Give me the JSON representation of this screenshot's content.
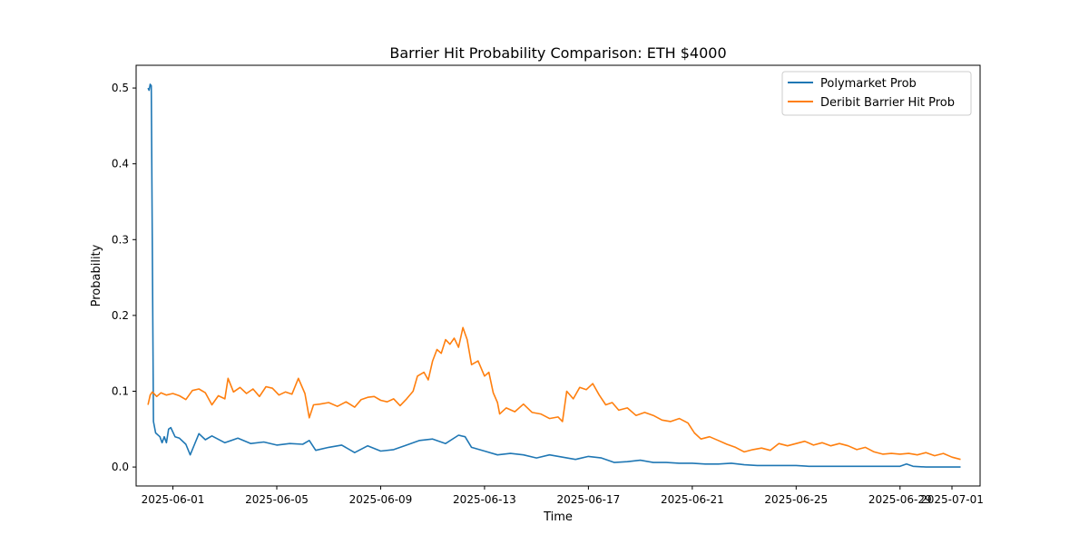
{
  "chart_data": {
    "type": "line",
    "title": "Barrier Hit Probability Comparison: ETH $4000",
    "xlabel": "Time",
    "ylabel": "Probability",
    "xlim": [
      "2025-05-30T14:00",
      "2025-07-02T02:00"
    ],
    "ylim": [
      -0.025,
      0.53
    ],
    "x_ticks": [
      "2025-06-01",
      "2025-06-05",
      "2025-06-09",
      "2025-06-13",
      "2025-06-17",
      "2025-06-21",
      "2025-06-25",
      "2025-06-29",
      "2025-07-01"
    ],
    "x_tick_labels": [
      "2025-06-01",
      "2025-06-05",
      "2025-06-09",
      "2025-06-13",
      "2025-06-17",
      "2025-06-21",
      "2025-06-25",
      "2025-06-29",
      "2025-07-01"
    ],
    "y_ticks": [
      0.0,
      0.1,
      0.2,
      0.3,
      0.4,
      0.5
    ],
    "y_tick_labels": [
      "0.0",
      "0.1",
      "0.2",
      "0.3",
      "0.4",
      "0.5"
    ],
    "legend_position": "top-right",
    "grid": false,
    "series": [
      {
        "name": "Polymarket Prob",
        "color": "#1f77b4",
        "points": [
          [
            "2025-05-31T01:00",
            0.5
          ],
          [
            "2025-05-31T02:00",
            0.497
          ],
          [
            "2025-05-31T03:00",
            0.505
          ],
          [
            "2025-05-31T04:00",
            0.503
          ],
          [
            "2025-05-31T06:00",
            0.06
          ],
          [
            "2025-05-31T08:00",
            0.045
          ],
          [
            "2025-05-31T12:00",
            0.04
          ],
          [
            "2025-05-31T14:00",
            0.032
          ],
          [
            "2025-05-31T16:00",
            0.04
          ],
          [
            "2025-05-31T18:00",
            0.032
          ],
          [
            "2025-05-31T20:00",
            0.05
          ],
          [
            "2025-05-31T22:00",
            0.052
          ],
          [
            "2025-06-01T02:00",
            0.04
          ],
          [
            "2025-06-01T06:00",
            0.038
          ],
          [
            "2025-06-01T12:00",
            0.03
          ],
          [
            "2025-06-01T16:00",
            0.016
          ],
          [
            "2025-06-01T20:00",
            0.03
          ],
          [
            "2025-06-02T00:00",
            0.044
          ],
          [
            "2025-06-02T06:00",
            0.036
          ],
          [
            "2025-06-02T12:00",
            0.041
          ],
          [
            "2025-06-03T00:00",
            0.032
          ],
          [
            "2025-06-03T12:00",
            0.038
          ],
          [
            "2025-06-04T00:00",
            0.031
          ],
          [
            "2025-06-04T12:00",
            0.033
          ],
          [
            "2025-06-05T00:00",
            0.029
          ],
          [
            "2025-06-05T12:00",
            0.031
          ],
          [
            "2025-06-06T00:00",
            0.03
          ],
          [
            "2025-06-06T06:00",
            0.035
          ],
          [
            "2025-06-06T12:00",
            0.022
          ],
          [
            "2025-06-07T00:00",
            0.026
          ],
          [
            "2025-06-07T12:00",
            0.029
          ],
          [
            "2025-06-08T00:00",
            0.019
          ],
          [
            "2025-06-08T12:00",
            0.028
          ],
          [
            "2025-06-09T00:00",
            0.021
          ],
          [
            "2025-06-09T12:00",
            0.023
          ],
          [
            "2025-06-10T00:00",
            0.029
          ],
          [
            "2025-06-10T12:00",
            0.035
          ],
          [
            "2025-06-11T00:00",
            0.037
          ],
          [
            "2025-06-11T12:00",
            0.031
          ],
          [
            "2025-06-12T00:00",
            0.042
          ],
          [
            "2025-06-12T06:00",
            0.04
          ],
          [
            "2025-06-12T12:00",
            0.026
          ],
          [
            "2025-06-13T00:00",
            0.021
          ],
          [
            "2025-06-13T12:00",
            0.016
          ],
          [
            "2025-06-14T00:00",
            0.018
          ],
          [
            "2025-06-14T12:00",
            0.016
          ],
          [
            "2025-06-15T00:00",
            0.012
          ],
          [
            "2025-06-15T12:00",
            0.016
          ],
          [
            "2025-06-16T00:00",
            0.013
          ],
          [
            "2025-06-16T12:00",
            0.01
          ],
          [
            "2025-06-17T00:00",
            0.014
          ],
          [
            "2025-06-17T12:00",
            0.012
          ],
          [
            "2025-06-18T00:00",
            0.006
          ],
          [
            "2025-06-18T12:00",
            0.007
          ],
          [
            "2025-06-19T00:00",
            0.009
          ],
          [
            "2025-06-19T12:00",
            0.006
          ],
          [
            "2025-06-20T00:00",
            0.006
          ],
          [
            "2025-06-20T12:00",
            0.005
          ],
          [
            "2025-06-21T00:00",
            0.005
          ],
          [
            "2025-06-21T12:00",
            0.004
          ],
          [
            "2025-06-22T00:00",
            0.004
          ],
          [
            "2025-06-22T12:00",
            0.005
          ],
          [
            "2025-06-23T00:00",
            0.003
          ],
          [
            "2025-06-23T12:00",
            0.002
          ],
          [
            "2025-06-24T00:00",
            0.002
          ],
          [
            "2025-06-24T12:00",
            0.002
          ],
          [
            "2025-06-25T00:00",
            0.002
          ],
          [
            "2025-06-25T12:00",
            0.001
          ],
          [
            "2025-06-26T00:00",
            0.001
          ],
          [
            "2025-06-26T12:00",
            0.001
          ],
          [
            "2025-06-27T00:00",
            0.001
          ],
          [
            "2025-06-27T12:00",
            0.001
          ],
          [
            "2025-06-28T00:00",
            0.001
          ],
          [
            "2025-06-28T12:00",
            0.001
          ],
          [
            "2025-06-29T00:00",
            0.001
          ],
          [
            "2025-06-29T06:00",
            0.004
          ],
          [
            "2025-06-29T12:00",
            0.001
          ],
          [
            "2025-06-30T00:00",
            0.0
          ],
          [
            "2025-06-30T12:00",
            0.0
          ],
          [
            "2025-07-01T00:00",
            0.0
          ],
          [
            "2025-07-01T08:00",
            0.0
          ]
        ]
      },
      {
        "name": "Deribit Barrier Hit Prob",
        "color": "#ff7f0e",
        "points": [
          [
            "2025-05-31T01:00",
            0.082
          ],
          [
            "2025-05-31T03:00",
            0.095
          ],
          [
            "2025-05-31T05:00",
            0.099
          ],
          [
            "2025-05-31T09:00",
            0.093
          ],
          [
            "2025-05-31T13:00",
            0.098
          ],
          [
            "2025-05-31T18:00",
            0.095
          ],
          [
            "2025-06-01T00:00",
            0.097
          ],
          [
            "2025-06-01T06:00",
            0.094
          ],
          [
            "2025-06-01T12:00",
            0.089
          ],
          [
            "2025-06-01T18:00",
            0.101
          ],
          [
            "2025-06-02T00:00",
            0.103
          ],
          [
            "2025-06-02T06:00",
            0.098
          ],
          [
            "2025-06-02T12:00",
            0.082
          ],
          [
            "2025-06-02T18:00",
            0.094
          ],
          [
            "2025-06-03T00:00",
            0.09
          ],
          [
            "2025-06-03T03:00",
            0.117
          ],
          [
            "2025-06-03T08:00",
            0.099
          ],
          [
            "2025-06-03T14:00",
            0.105
          ],
          [
            "2025-06-03T20:00",
            0.097
          ],
          [
            "2025-06-04T02:00",
            0.103
          ],
          [
            "2025-06-04T08:00",
            0.093
          ],
          [
            "2025-06-04T14:00",
            0.106
          ],
          [
            "2025-06-04T20:00",
            0.104
          ],
          [
            "2025-06-05T02:00",
            0.095
          ],
          [
            "2025-06-05T08:00",
            0.099
          ],
          [
            "2025-06-05T14:00",
            0.096
          ],
          [
            "2025-06-05T20:00",
            0.117
          ],
          [
            "2025-06-06T02:00",
            0.097
          ],
          [
            "2025-06-06T06:00",
            0.065
          ],
          [
            "2025-06-06T10:00",
            0.082
          ],
          [
            "2025-06-06T16:00",
            0.083
          ],
          [
            "2025-06-07T00:00",
            0.085
          ],
          [
            "2025-06-07T08:00",
            0.08
          ],
          [
            "2025-06-07T16:00",
            0.086
          ],
          [
            "2025-06-08T00:00",
            0.079
          ],
          [
            "2025-06-08T06:00",
            0.089
          ],
          [
            "2025-06-08T12:00",
            0.092
          ],
          [
            "2025-06-08T18:00",
            0.093
          ],
          [
            "2025-06-09T00:00",
            0.088
          ],
          [
            "2025-06-09T06:00",
            0.086
          ],
          [
            "2025-06-09T12:00",
            0.09
          ],
          [
            "2025-06-09T18:00",
            0.081
          ],
          [
            "2025-06-10T00:00",
            0.09
          ],
          [
            "2025-06-10T06:00",
            0.1
          ],
          [
            "2025-06-10T10:00",
            0.12
          ],
          [
            "2025-06-10T16:00",
            0.125
          ],
          [
            "2025-06-10T20:00",
            0.115
          ],
          [
            "2025-06-11T00:00",
            0.14
          ],
          [
            "2025-06-11T04:00",
            0.155
          ],
          [
            "2025-06-11T08:00",
            0.15
          ],
          [
            "2025-06-11T12:00",
            0.168
          ],
          [
            "2025-06-11T16:00",
            0.162
          ],
          [
            "2025-06-11T20:00",
            0.17
          ],
          [
            "2025-06-12T00:00",
            0.158
          ],
          [
            "2025-06-12T04:00",
            0.184
          ],
          [
            "2025-06-12T08:00",
            0.168
          ],
          [
            "2025-06-12T12:00",
            0.135
          ],
          [
            "2025-06-12T18:00",
            0.14
          ],
          [
            "2025-06-13T00:00",
            0.12
          ],
          [
            "2025-06-13T04:00",
            0.125
          ],
          [
            "2025-06-13T08:00",
            0.098
          ],
          [
            "2025-06-13T12:00",
            0.085
          ],
          [
            "2025-06-13T14:00",
            0.07
          ],
          [
            "2025-06-13T20:00",
            0.078
          ],
          [
            "2025-06-14T04:00",
            0.073
          ],
          [
            "2025-06-14T12:00",
            0.083
          ],
          [
            "2025-06-14T20:00",
            0.072
          ],
          [
            "2025-06-15T04:00",
            0.07
          ],
          [
            "2025-06-15T12:00",
            0.064
          ],
          [
            "2025-06-15T20:00",
            0.066
          ],
          [
            "2025-06-16T00:00",
            0.06
          ],
          [
            "2025-06-16T04:00",
            0.1
          ],
          [
            "2025-06-16T10:00",
            0.09
          ],
          [
            "2025-06-16T16:00",
            0.105
          ],
          [
            "2025-06-16T22:00",
            0.102
          ],
          [
            "2025-06-17T04:00",
            0.11
          ],
          [
            "2025-06-17T10:00",
            0.095
          ],
          [
            "2025-06-17T16:00",
            0.082
          ],
          [
            "2025-06-17T22:00",
            0.085
          ],
          [
            "2025-06-18T04:00",
            0.075
          ],
          [
            "2025-06-18T12:00",
            0.078
          ],
          [
            "2025-06-18T20:00",
            0.068
          ],
          [
            "2025-06-19T04:00",
            0.072
          ],
          [
            "2025-06-19T12:00",
            0.068
          ],
          [
            "2025-06-19T20:00",
            0.062
          ],
          [
            "2025-06-20T04:00",
            0.06
          ],
          [
            "2025-06-20T12:00",
            0.064
          ],
          [
            "2025-06-20T20:00",
            0.058
          ],
          [
            "2025-06-21T02:00",
            0.045
          ],
          [
            "2025-06-21T08:00",
            0.037
          ],
          [
            "2025-06-21T16:00",
            0.04
          ],
          [
            "2025-06-22T00:00",
            0.035
          ],
          [
            "2025-06-22T08:00",
            0.03
          ],
          [
            "2025-06-22T16:00",
            0.026
          ],
          [
            "2025-06-23T00:00",
            0.02
          ],
          [
            "2025-06-23T08:00",
            0.023
          ],
          [
            "2025-06-23T16:00",
            0.025
          ],
          [
            "2025-06-24T00:00",
            0.022
          ],
          [
            "2025-06-24T08:00",
            0.031
          ],
          [
            "2025-06-24T16:00",
            0.028
          ],
          [
            "2025-06-25T00:00",
            0.031
          ],
          [
            "2025-06-25T08:00",
            0.034
          ],
          [
            "2025-06-25T16:00",
            0.029
          ],
          [
            "2025-06-26T00:00",
            0.032
          ],
          [
            "2025-06-26T08:00",
            0.028
          ],
          [
            "2025-06-26T16:00",
            0.031
          ],
          [
            "2025-06-27T00:00",
            0.028
          ],
          [
            "2025-06-27T08:00",
            0.023
          ],
          [
            "2025-06-27T16:00",
            0.026
          ],
          [
            "2025-06-28T00:00",
            0.02
          ],
          [
            "2025-06-28T08:00",
            0.017
          ],
          [
            "2025-06-28T16:00",
            0.018
          ],
          [
            "2025-06-29T00:00",
            0.017
          ],
          [
            "2025-06-29T08:00",
            0.018
          ],
          [
            "2025-06-29T16:00",
            0.016
          ],
          [
            "2025-06-30T00:00",
            0.019
          ],
          [
            "2025-06-30T08:00",
            0.015
          ],
          [
            "2025-06-30T16:00",
            0.018
          ],
          [
            "2025-07-01T00:00",
            0.013
          ],
          [
            "2025-07-01T08:00",
            0.01
          ]
        ]
      }
    ]
  }
}
